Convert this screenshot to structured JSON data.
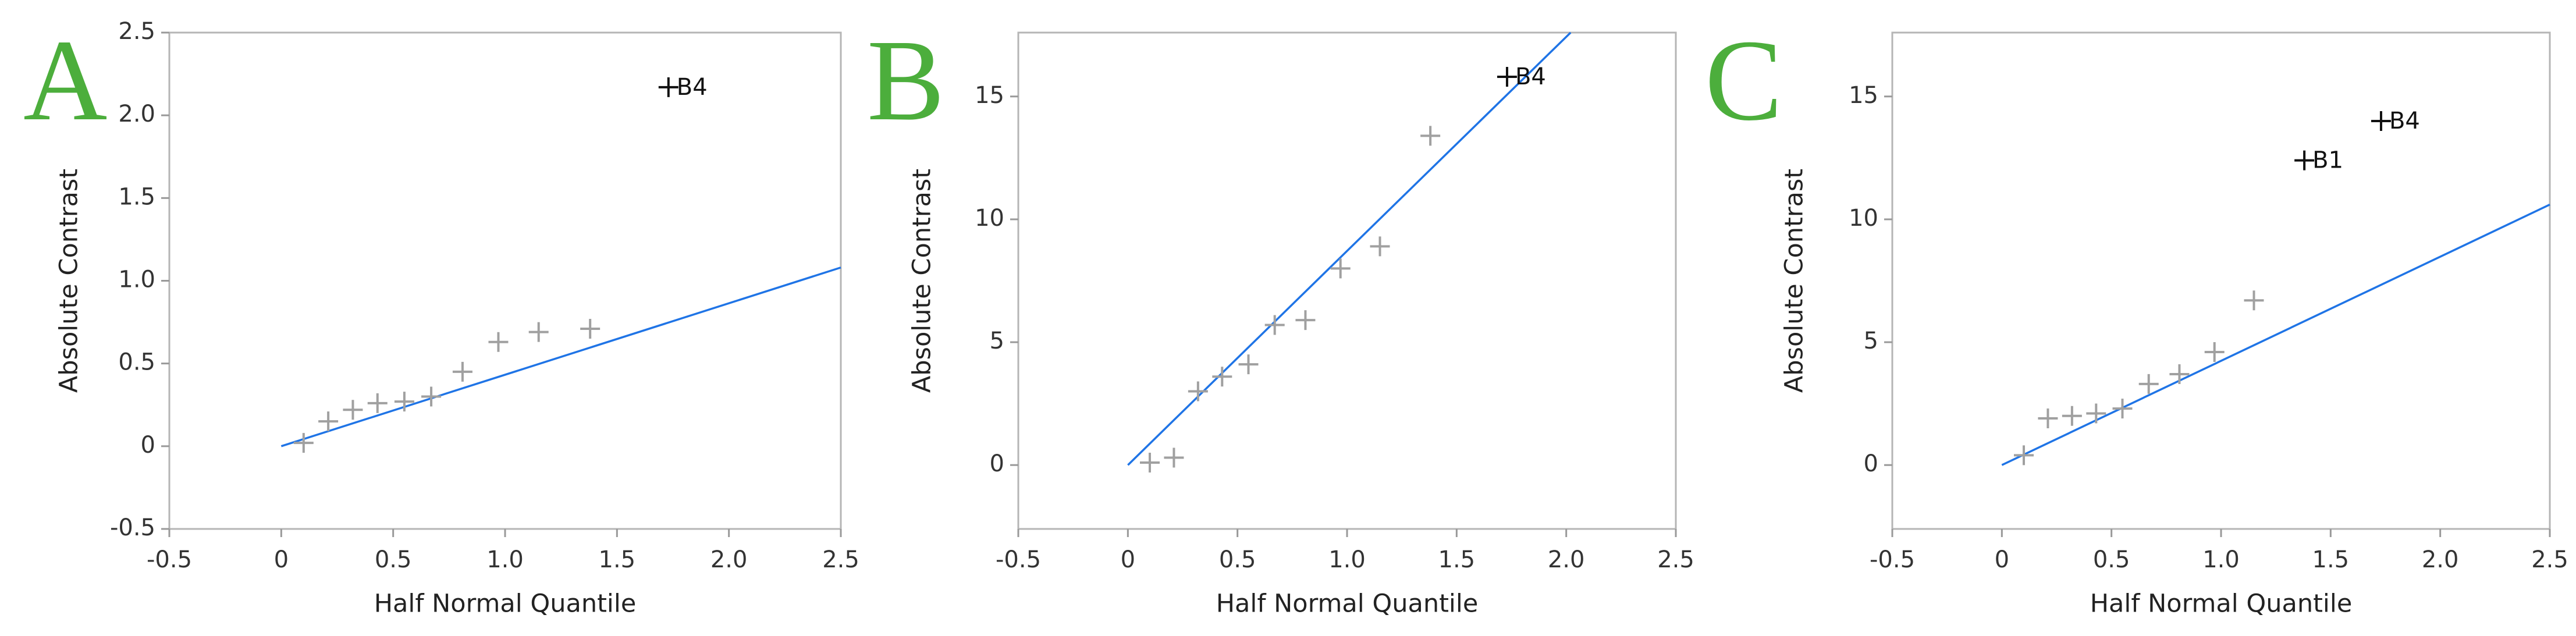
{
  "chart_data": [
    {
      "type": "scatter",
      "panel_label": "A",
      "x_label": "Half Normal Quantile",
      "y_label": "Absolute Contrast",
      "x": [
        0.1,
        0.21,
        0.32,
        0.43,
        0.55,
        0.67,
        0.81,
        0.97,
        1.15,
        1.38,
        1.73
      ],
      "values": [
        0.02,
        0.15,
        0.22,
        0.26,
        0.27,
        0.3,
        0.45,
        0.63,
        0.69,
        0.71,
        2.17
      ],
      "point_labels": [
        null,
        null,
        null,
        null,
        null,
        null,
        null,
        null,
        null,
        null,
        "B4"
      ],
      "color": "#a0a0a0",
      "label_color": "#111111",
      "line": {
        "x": [
          0,
          2.5
        ],
        "y": [
          0,
          1.08
        ],
        "color": "#1f74e6"
      },
      "xlim": [
        -0.5,
        2.5
      ],
      "ylim": [
        -0.5,
        2.5
      ],
      "xticks": [
        -0.5,
        0,
        0.5,
        {
          "value": 1,
          "label": "1.0"
        },
        1.5,
        {
          "value": 2,
          "label": "2.0"
        },
        2.5
      ],
      "yticks": [
        -0.5,
        0,
        0.5,
        {
          "value": 1,
          "label": "1.0"
        },
        1.5,
        {
          "value": 2,
          "label": "2.0"
        },
        2.5
      ]
    },
    {
      "type": "scatter",
      "panel_label": "B",
      "x_label": "Half Normal Quantile",
      "y_label": "Absolute Contrast",
      "x": [
        0.1,
        0.21,
        0.32,
        0.43,
        0.55,
        0.67,
        0.81,
        0.97,
        1.15,
        1.38,
        1.73
      ],
      "values": [
        0.1,
        0.3,
        3.0,
        3.6,
        4.1,
        5.7,
        5.9,
        8.0,
        8.9,
        13.4,
        15.8
      ],
      "point_labels": [
        null,
        null,
        null,
        null,
        null,
        null,
        null,
        null,
        null,
        null,
        "B4"
      ],
      "color": "#a0a0a0",
      "label_color": "#111111",
      "line": {
        "x": [
          0,
          2.02
        ],
        "y": [
          0,
          17.6
        ],
        "color": "#1f74e6"
      },
      "xlim": [
        -0.5,
        2.5
      ],
      "ylim": [
        -2.6,
        17.6
      ],
      "xticks": [
        -0.5,
        0,
        0.5,
        {
          "value": 1,
          "label": "1.0"
        },
        1.5,
        {
          "value": 2,
          "label": "2.0"
        },
        2.5
      ],
      "yticks": [
        0,
        5,
        10,
        15
      ]
    },
    {
      "type": "scatter",
      "panel_label": "C",
      "x_label": "Half Normal Quantile",
      "y_label": "Absolute Contrast",
      "x": [
        0.1,
        0.21,
        0.32,
        0.43,
        0.55,
        0.67,
        0.81,
        0.97,
        1.15,
        1.38,
        1.73
      ],
      "values": [
        0.4,
        1.9,
        2.0,
        2.1,
        2.3,
        3.3,
        3.7,
        4.6,
        6.7,
        12.4,
        14.0
      ],
      "point_labels": [
        null,
        null,
        null,
        null,
        null,
        null,
        null,
        null,
        null,
        "B1",
        "B4"
      ],
      "color": "#a0a0a0",
      "label_color": "#111111",
      "line": {
        "x": [
          0,
          2.5
        ],
        "y": [
          0,
          10.6
        ],
        "color": "#1f74e6"
      },
      "xlim": [
        -0.5,
        2.5
      ],
      "ylim": [
        -2.6,
        17.6
      ],
      "xticks": [
        -0.5,
        0,
        0.5,
        {
          "value": 1,
          "label": "1.0"
        },
        1.5,
        {
          "value": 2,
          "label": "2.0"
        },
        2.5
      ],
      "yticks": [
        0,
        5,
        10,
        15
      ]
    }
  ]
}
